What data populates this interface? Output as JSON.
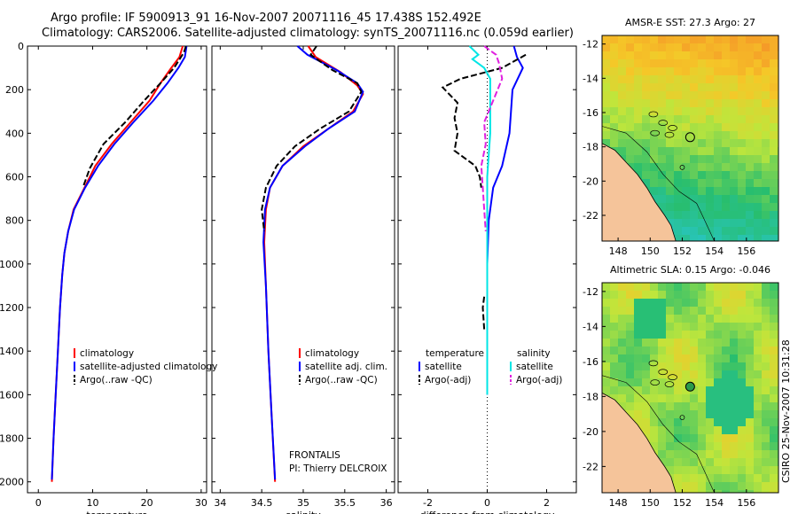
{
  "header": {
    "line1": "Argo profile: IF 5900913_91 16-Nov-2007 20071116_45 17.438S 152.492E",
    "line2": "Climatology: CARS2006. Satellite-adjusted climatology: synTS_20071116.nc (0.059d earlier)"
  },
  "stamp": "CSIRO 25-Nov-2007 10:31:28",
  "colors": {
    "climatology": "#ff0000",
    "satellite": "#0000ff",
    "argo": "#000000",
    "sal_satellite": "#00e5e5",
    "sal_argo": "#e020e0",
    "land": "#f5c49a"
  },
  "chart_data": [
    {
      "type": "line",
      "id": "temperature",
      "xlabel": "temperature",
      "ylabel": "",
      "xlim": [
        -2,
        31
      ],
      "ylim": [
        2050,
        0
      ],
      "xticks": [
        0,
        10,
        20,
        30
      ],
      "yticks": [
        0,
        200,
        400,
        600,
        800,
        1000,
        1200,
        1400,
        1600,
        1800,
        2000
      ],
      "legend": [
        "climatology",
        "satellite-adjusted climatology",
        "Argo(..raw -QC)"
      ],
      "series": [
        {
          "name": "climatology",
          "color": "#ff0000",
          "style": "solid",
          "points": [
            [
              26.6,
              0
            ],
            [
              26,
              50
            ],
            [
              24.5,
              100
            ],
            [
              22.5,
              170
            ],
            [
              20.5,
              250
            ],
            [
              17,
              350
            ],
            [
              13.5,
              450
            ],
            [
              10.5,
              550
            ],
            [
              8.5,
              650
            ],
            [
              6.5,
              750
            ],
            [
              5.5,
              850
            ],
            [
              4.8,
              950
            ],
            [
              4.4,
              1050
            ],
            [
              4,
              1200
            ],
            [
              3.6,
              1400
            ],
            [
              3.2,
              1600
            ],
            [
              2.8,
              1800
            ],
            [
              2.5,
              2000
            ]
          ]
        },
        {
          "name": "satellite",
          "color": "#0000ff",
          "style": "solid",
          "points": [
            [
              27.3,
              0
            ],
            [
              27,
              50
            ],
            [
              25.8,
              100
            ],
            [
              23.8,
              170
            ],
            [
              21.2,
              250
            ],
            [
              17.5,
              350
            ],
            [
              14,
              450
            ],
            [
              11,
              550
            ],
            [
              8.6,
              650
            ],
            [
              6.6,
              750
            ],
            [
              5.5,
              850
            ],
            [
              4.8,
              950
            ],
            [
              4.4,
              1050
            ],
            [
              4,
              1200
            ],
            [
              3.6,
              1400
            ],
            [
              3.2,
              1600
            ],
            [
              2.8,
              1800
            ],
            [
              2.5,
              1990
            ]
          ]
        },
        {
          "name": "Argo",
          "color": "#000000",
          "style": "dash",
          "points": [
            [
              27.2,
              0
            ],
            [
              26.8,
              30
            ],
            [
              25,
              100
            ],
            [
              22.5,
              170
            ],
            [
              19.5,
              250
            ],
            [
              16,
              350
            ],
            [
              12,
              450
            ],
            [
              9.5,
              560
            ],
            [
              8.2,
              650
            ]
          ]
        }
      ]
    },
    {
      "type": "line",
      "id": "salinity",
      "xlabel": "salinity",
      "ylabel": "",
      "xlim": [
        33.9,
        36.1
      ],
      "ylim": [
        2050,
        0
      ],
      "xticks": [
        34,
        34.5,
        35,
        35.5,
        36
      ],
      "legend": [
        "climatology",
        "satellite adj. clim.",
        "Argo(..raw -QC)"
      ],
      "annotations": [
        "FRONTALIS",
        "PI: Thierry DELCROIX"
      ],
      "series": [
        {
          "name": "climatology",
          "color": "#ff0000",
          "style": "solid",
          "points": [
            [
              35.06,
              0
            ],
            [
              35.15,
              50
            ],
            [
              35.45,
              120
            ],
            [
              35.65,
              180
            ],
            [
              35.72,
              220
            ],
            [
              35.6,
              300
            ],
            [
              35.3,
              380
            ],
            [
              35,
              460
            ],
            [
              34.75,
              550
            ],
            [
              34.6,
              650
            ],
            [
              34.55,
              750
            ],
            [
              34.53,
              900
            ],
            [
              34.55,
              1100
            ],
            [
              34.58,
              1400
            ],
            [
              34.62,
              1700
            ],
            [
              34.66,
              2000
            ]
          ]
        },
        {
          "name": "satellite",
          "color": "#0000ff",
          "style": "solid",
          "points": [
            [
              34.93,
              0
            ],
            [
              35.05,
              40
            ],
            [
              35.4,
              110
            ],
            [
              35.65,
              170
            ],
            [
              35.72,
              210
            ],
            [
              35.62,
              300
            ],
            [
              35.3,
              380
            ],
            [
              35.02,
              460
            ],
            [
              34.75,
              550
            ],
            [
              34.6,
              650
            ],
            [
              34.54,
              750
            ],
            [
              34.52,
              900
            ],
            [
              34.55,
              1100
            ],
            [
              34.58,
              1400
            ],
            [
              34.62,
              1700
            ],
            [
              34.66,
              1990
            ]
          ]
        },
        {
          "name": "Argo",
          "color": "#000000",
          "style": "dash",
          "points": [
            [
              35.16,
              0
            ],
            [
              35.09,
              40
            ],
            [
              35.35,
              110
            ],
            [
              35.65,
              170
            ],
            [
              35.7,
              210
            ],
            [
              35.55,
              300
            ],
            [
              35.2,
              380
            ],
            [
              34.9,
              460
            ],
            [
              34.68,
              550
            ],
            [
              34.55,
              650
            ],
            [
              34.5,
              750
            ],
            [
              34.53,
              850
            ]
          ]
        }
      ]
    },
    {
      "type": "line",
      "id": "difference",
      "xlabel": "difference from climatology",
      "ylabel": "",
      "xlim": [
        -3,
        3
      ],
      "ylim": [
        2050,
        0
      ],
      "xticks": [
        -2,
        0,
        2
      ],
      "legend_left_title": "temperature",
      "legend_right_title": "salinity",
      "legend": [
        "satellite",
        "Argo(-adj)",
        "satellite",
        "Argo(-adj)"
      ],
      "series": [
        {
          "name": "temperature satellite",
          "color": "#0000ff",
          "style": "solid",
          "points": [
            [
              0.9,
              0
            ],
            [
              1,
              50
            ],
            [
              1.2,
              100
            ],
            [
              0.85,
              200
            ],
            [
              0.8,
              300
            ],
            [
              0.75,
              400
            ],
            [
              0.5,
              550
            ],
            [
              0.2,
              650
            ],
            [
              0.05,
              800
            ],
            [
              0,
              1000
            ],
            [
              0,
              1500
            ],
            [
              0,
              1600
            ]
          ]
        },
        {
          "name": "salinity satellite",
          "color": "#00e5e5",
          "style": "solid",
          "points": [
            [
              -0.6,
              0
            ],
            [
              -0.3,
              40
            ],
            [
              -0.5,
              60
            ],
            [
              -0.1,
              100
            ],
            [
              0.1,
              150
            ],
            [
              0.1,
              400
            ],
            [
              0,
              600
            ],
            [
              0,
              900
            ],
            [
              0,
              1200
            ],
            [
              0,
              1600
            ]
          ]
        },
        {
          "name": "temperature Argo(-adj)",
          "color": "#000000",
          "style": "dash",
          "points": [
            [
              1.3,
              40
            ],
            [
              0.5,
              100
            ],
            [
              -0.9,
              150
            ],
            [
              -1.5,
              190
            ],
            [
              -1.0,
              260
            ],
            [
              -1.1,
              330
            ],
            [
              -1.0,
              400
            ],
            [
              -1.1,
              480
            ],
            [
              -0.4,
              550
            ],
            [
              -0.25,
              600
            ],
            [
              -0.2,
              650
            ]
          ]
        },
        {
          "name": "salinity Argo(-adj)",
          "color": "#e020e0",
          "style": "dash",
          "points": [
            [
              -0.1,
              0
            ],
            [
              0.3,
              40
            ],
            [
              0.4,
              80
            ],
            [
              0.5,
              150
            ],
            [
              0.2,
              250
            ],
            [
              -0.1,
              350
            ],
            [
              -0.05,
              450
            ],
            [
              -0.2,
              550
            ],
            [
              -0.15,
              650
            ],
            [
              -0.1,
              750
            ],
            [
              -0.05,
              850
            ]
          ]
        },
        {
          "name": "Argo deep temperature",
          "color": "#000000",
          "style": "dash",
          "points": [
            [
              -0.1,
              1150
            ],
            [
              -0.15,
              1200
            ],
            [
              -0.1,
              1300
            ]
          ]
        }
      ]
    },
    {
      "type": "heatmap",
      "id": "sst_map",
      "title": "AMSR-E SST: 27.3 Argo: 27",
      "xticks": [
        148,
        150,
        152,
        154,
        156
      ],
      "yticks": [
        -12,
        -14,
        -16,
        -18,
        -20,
        -22
      ],
      "xlim": [
        147,
        158
      ],
      "ylim": [
        -23.5,
        -11.5
      ],
      "argo_position": [
        152.492,
        -17.438
      ]
    },
    {
      "type": "heatmap",
      "id": "sla_map",
      "title": "Altimetric SLA: 0.15 Argo: -0.046",
      "xticks": [
        148,
        150,
        152,
        154,
        156
      ],
      "yticks": [
        -12,
        -14,
        -16,
        -18,
        -20,
        -22
      ],
      "xlim": [
        147,
        158
      ],
      "ylim": [
        -23.5,
        -11.5
      ],
      "argo_position": [
        152.492,
        -17.438
      ]
    }
  ]
}
